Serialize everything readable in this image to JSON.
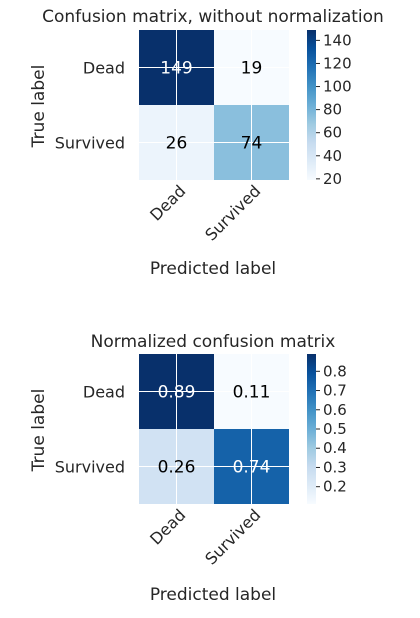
{
  "chart_data": [
    {
      "type": "heatmap",
      "title": "Confusion matrix, without normalization",
      "xlabel": "Predicted label",
      "ylabel": "True label",
      "x_categories": [
        "Dead",
        "Survived"
      ],
      "y_categories": [
        "Dead",
        "Survived"
      ],
      "values": [
        [
          149,
          19
        ],
        [
          26,
          74
        ]
      ],
      "value_labels": [
        [
          "149",
          "19"
        ],
        [
          "26",
          "74"
        ]
      ],
      "colormap": "Blues",
      "vmin": 19,
      "vmax": 149,
      "colorbar_ticks": [
        "20",
        "40",
        "60",
        "80",
        "100",
        "120",
        "140"
      ],
      "colorbar_tick_values": [
        20,
        40,
        60,
        80,
        100,
        120,
        140
      ]
    },
    {
      "type": "heatmap",
      "title": "Normalized confusion matrix",
      "xlabel": "Predicted label",
      "ylabel": "True label",
      "x_categories": [
        "Dead",
        "Survived"
      ],
      "y_categories": [
        "Dead",
        "Survived"
      ],
      "values": [
        [
          0.89,
          0.11
        ],
        [
          0.26,
          0.74
        ]
      ],
      "value_labels": [
        [
          "0.89",
          "0.11"
        ],
        [
          "0.26",
          "0.74"
        ]
      ],
      "colormap": "Blues",
      "vmin": 0.11,
      "vmax": 0.89,
      "colorbar_ticks": [
        "0.2",
        "0.3",
        "0.4",
        "0.5",
        "0.6",
        "0.7",
        "0.8"
      ],
      "colorbar_tick_values": [
        0.2,
        0.3,
        0.4,
        0.5,
        0.6,
        0.7,
        0.8
      ]
    }
  ]
}
